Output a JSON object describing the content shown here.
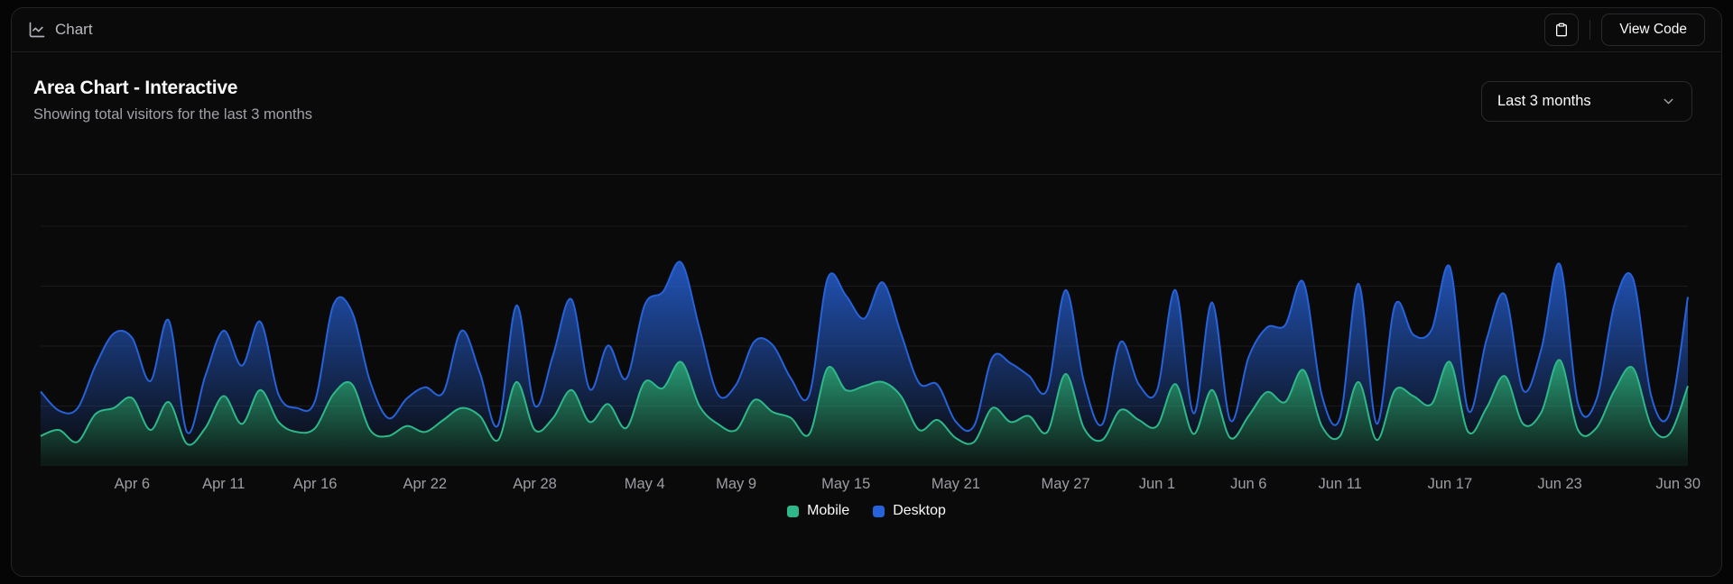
{
  "toolbar": {
    "block_name": "Chart",
    "view_code_label": "View Code"
  },
  "card": {
    "title": "Area Chart - Interactive",
    "description": "Showing total visitors for the last 3 months",
    "range_select": {
      "value": "Last 3 months"
    }
  },
  "colors": {
    "mobile": "#2eb88a",
    "desktop": "#2662d9",
    "grid": "rgba(255,255,255,0.07)",
    "tick_text": "#9d9da5"
  },
  "chart_data": {
    "type": "area",
    "stacked": true,
    "curve": "natural",
    "title": "Area Chart - Interactive",
    "x_unit": "day",
    "x_range_label": "Apr 1 - Jun 30 (91 daily points, last 3 months)",
    "ylim": [
      0,
      1200
    ],
    "y_gridlines": [
      300,
      600,
      900,
      1200
    ],
    "grid": "horizontal-only",
    "legend_position": "bottom",
    "x_ticks": [
      {
        "label": "Apr 6",
        "index": 5
      },
      {
        "label": "Apr 11",
        "index": 10
      },
      {
        "label": "Apr 16",
        "index": 15
      },
      {
        "label": "Apr 22",
        "index": 21
      },
      {
        "label": "Apr 28",
        "index": 27
      },
      {
        "label": "May 4",
        "index": 33
      },
      {
        "label": "May 9",
        "index": 38
      },
      {
        "label": "May 15",
        "index": 44
      },
      {
        "label": "May 21",
        "index": 50
      },
      {
        "label": "May 27",
        "index": 56
      },
      {
        "label": "Jun 1",
        "index": 61
      },
      {
        "label": "Jun 6",
        "index": 66
      },
      {
        "label": "Jun 11",
        "index": 71
      },
      {
        "label": "Jun 17",
        "index": 77
      },
      {
        "label": "Jun 23",
        "index": 83
      },
      {
        "label": "Jun 30",
        "index": 90
      }
    ],
    "series": [
      {
        "name": "Mobile",
        "color": "#2eb88a",
        "values": [
          150,
          180,
          120,
          260,
          290,
          340,
          180,
          320,
          110,
          190,
          350,
          210,
          380,
          220,
          170,
          190,
          360,
          410,
          180,
          150,
          200,
          170,
          230,
          290,
          250,
          130,
          420,
          180,
          240,
          380,
          220,
          310,
          190,
          420,
          390,
          520,
          300,
          210,
          180,
          330,
          270,
          240,
          160,
          490,
          380,
          400,
          420,
          350,
          180,
          230,
          140,
          120,
          290,
          220,
          250,
          170,
          460,
          190,
          130,
          280,
          230,
          200,
          410,
          160,
          380,
          140,
          250,
          370,
          320,
          480,
          200,
          150,
          420,
          130,
          380,
          350,
          310,
          520,
          170,
          290,
          450,
          210,
          270,
          530,
          180,
          190,
          380,
          490,
          200,
          160,
          400
        ]
      },
      {
        "name": "Desktop",
        "color": "#2662d9",
        "stacked_on": "Mobile",
        "values": [
          222,
          97,
          167,
          242,
          373,
          301,
          245,
          409,
          59,
          261,
          327,
          292,
          342,
          137,
          120,
          138,
          446,
          364,
          243,
          89,
          137,
          224,
          138,
          387,
          215,
          75,
          383,
          122,
          315,
          454,
          165,
          293,
          247,
          385,
          481,
          498,
          388,
          149,
          227,
          293,
          335,
          197,
          197,
          448,
          473,
          338,
          499,
          315,
          235,
          177,
          82,
          81,
          252,
          294,
          201,
          213,
          420,
          233,
          78,
          340,
          178,
          178,
          470,
          103,
          439,
          88,
          294,
          323,
          385,
          438,
          155,
          92,
          492,
          81,
          426,
          307,
          371,
          475,
          107,
          341,
          408,
          169,
          317,
          480,
          132,
          141,
          434,
          448,
          149,
          103,
          446
        ]
      }
    ]
  }
}
